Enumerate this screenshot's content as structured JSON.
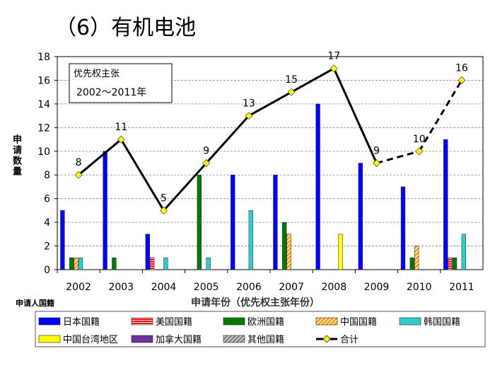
{
  "title": "（6）有机电池",
  "chart_data": {
    "type": "bar",
    "categories": [
      "2002",
      "2003",
      "2004",
      "2005",
      "2006",
      "2007",
      "2008",
      "2009",
      "2010",
      "2011"
    ],
    "xlabel": "申请年份（优先权主张年份）",
    "ylabel": "申请数量",
    "legend_title": "申请人国籍",
    "ylim": [
      0,
      18
    ],
    "yticks": [
      0,
      2,
      4,
      6,
      8,
      10,
      12,
      14,
      16,
      18
    ],
    "grid": true,
    "legend_placement": "bottom",
    "annotation": {
      "line1": "优先权主张",
      "line2": "2002～2011年"
    },
    "series": [
      {
        "name": "日本国籍",
        "color": "#0000ff",
        "pattern": "solid",
        "values": [
          5,
          10,
          3,
          0,
          8,
          8,
          14,
          9,
          7,
          11
        ]
      },
      {
        "name": "美国国籍",
        "color": "#ff0000",
        "pattern": "hlines",
        "values": [
          0,
          0,
          1,
          0,
          0,
          0,
          0,
          0,
          0,
          1
        ]
      },
      {
        "name": "欧洲国籍",
        "color": "#007a00",
        "pattern": "solid",
        "values": [
          1,
          1,
          0,
          8,
          0,
          4,
          0,
          0,
          1,
          1
        ]
      },
      {
        "name": "中国国籍",
        "color": "#ff9900",
        "pattern": "diagonal",
        "values": [
          1,
          0,
          0,
          0,
          0,
          3,
          0,
          0,
          2,
          0
        ]
      },
      {
        "name": "韩国国籍",
        "color": "#33cccc",
        "pattern": "solid",
        "values": [
          1,
          0,
          1,
          1,
          5,
          0,
          0,
          0,
          0,
          3
        ]
      },
      {
        "name": "中国台湾地区",
        "color": "#ffff00",
        "pattern": "solid",
        "values": [
          0,
          0,
          0,
          0,
          0,
          0,
          3,
          0,
          0,
          0
        ]
      },
      {
        "name": "加拿大国籍",
        "color": "#7030a0",
        "pattern": "solid",
        "values": [
          0,
          0,
          0,
          0,
          0,
          0,
          0,
          0,
          0,
          0
        ]
      },
      {
        "name": "其他国籍",
        "color": "#999999",
        "pattern": "diagonal",
        "values": [
          0,
          0,
          0,
          0,
          0,
          0,
          0,
          0,
          0,
          0
        ]
      }
    ],
    "total": {
      "name": "合计",
      "type": "line",
      "color": "#000000",
      "marker_color": "#ffff00",
      "values": [
        8,
        11,
        5,
        9,
        13,
        15,
        17,
        9,
        10,
        16
      ],
      "dashed_from": "2009"
    }
  }
}
